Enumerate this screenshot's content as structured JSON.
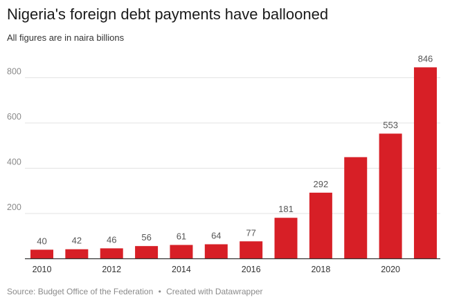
{
  "title": "Nigeria's foreign debt payments have ballooned",
  "subtitle": "All figures are in naira billions",
  "footer": {
    "source": "Source: Budget Office of the Federation",
    "separator": "•",
    "credit": "Created with Datawrapper"
  },
  "chart_data": {
    "type": "bar",
    "categories": [
      "2010",
      "2011",
      "2012",
      "2013",
      "2014",
      "2015",
      "2016",
      "2017",
      "2018",
      "2019",
      "2020",
      "2021"
    ],
    "values": [
      40,
      42,
      46,
      56,
      61,
      64,
      77,
      181,
      292,
      449,
      553,
      846
    ],
    "value_labels": [
      "40",
      "42",
      "46",
      "56",
      "61",
      "64",
      "77",
      "181",
      "292",
      "",
      "553",
      "846"
    ],
    "x_tick_labels": [
      "2010",
      "2012",
      "2014",
      "2016",
      "2018",
      "2020"
    ],
    "y_ticks": [
      200,
      400,
      600,
      800
    ],
    "ylim": [
      0,
      900
    ],
    "xlabel": "",
    "ylabel": "",
    "grid": true,
    "bar_color": "#d71f26"
  }
}
